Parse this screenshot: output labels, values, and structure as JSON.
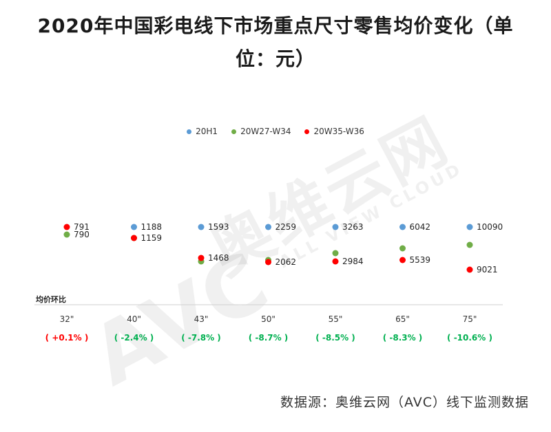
{
  "title_line1": "2020年中国彩电线下市场重点尺寸零售均价变化（单",
  "title_line2": "位：元）",
  "legend": [
    {
      "label": "20H1",
      "color": "#5b9bd5"
    },
    {
      "label": "20W27-W34",
      "color": "#70ad47"
    },
    {
      "label": "20W35-W36",
      "color": "#ff0000"
    }
  ],
  "watermark": {
    "brand": "奥维云网",
    "logo": "AVC",
    "sub": "ALL VIEW CLOUD"
  },
  "row_label": "均价环比",
  "source": "数据源：奥维云网（AVC）线下监测数据",
  "chart_data": {
    "type": "scatter",
    "categories": [
      "32\"",
      "40\"",
      "43\"",
      "50\"",
      "55\"",
      "65\"",
      "75\""
    ],
    "series": [
      {
        "name": "20H1",
        "color": "#5b9bd5",
        "values": [
          null,
          1188,
          1593,
          2259,
          3263,
          6042,
          10090
        ]
      },
      {
        "name": "20W27-W34",
        "color": "#70ad47",
        "values": [
          790,
          1187,
          1592,
          2270,
          3262,
          6590,
          10080
        ]
      },
      {
        "name": "20W35-W36",
        "color": "#ff0000",
        "values": [
          791,
          1159,
          1468,
          2062,
          2984,
          5539,
          9021
        ]
      }
    ],
    "value_labels": [
      [
        {
          "text": "791",
          "series": 2
        },
        {
          "text": "790",
          "series": 1
        }
      ],
      [
        {
          "text": "1188",
          "series": 0
        },
        {
          "text": "1159",
          "series": 2
        }
      ],
      [
        {
          "text": "1593",
          "series": 0
        },
        {
          "text": "1468",
          "series": 2
        }
      ],
      [
        {
          "text": "2259",
          "series": 0
        },
        {
          "text": "2062",
          "series": 2
        }
      ],
      [
        {
          "text": "3263",
          "series": 0
        },
        {
          "text": "2984",
          "series": 2
        }
      ],
      [
        {
          "text": "6042",
          "series": 0
        },
        {
          "text": "5539",
          "series": 2
        }
      ],
      [
        {
          "text": "10090",
          "series": 0
        },
        {
          "text": "9021",
          "series": 2
        }
      ]
    ],
    "mom_change": [
      "( +0.1% )",
      "( -2.4% )",
      "( -7.8% )",
      "( -8.7% )",
      "( -8.5% )",
      "( -8.3% )",
      "( -10.6% )"
    ],
    "mom_colors": [
      "#ff0000",
      "#00b050",
      "#00b050",
      "#00b050",
      "#00b050",
      "#00b050",
      "#00b050"
    ]
  }
}
